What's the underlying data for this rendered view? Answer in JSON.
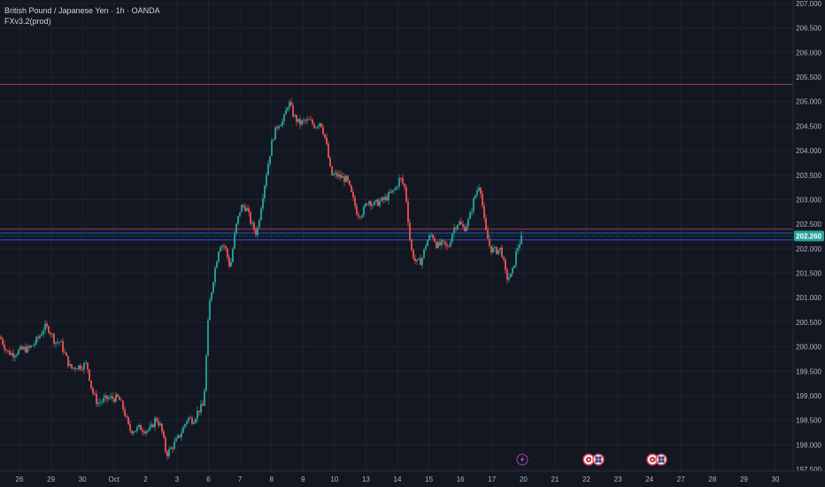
{
  "header": {
    "symbol_title": "British Pound / Japanese Yen · 1h · OANDA",
    "indicator": "FXv3.2(prod)"
  },
  "colors": {
    "background": "#131722",
    "up": "#26a69a",
    "down": "#ef5350",
    "grid": "#1e222d",
    "axis_text": "#b2b5be",
    "current_price_bg": "#26a69a",
    "resistance_line": "#b2455a",
    "support_line": "#2962ff"
  },
  "chart_data": {
    "type": "candlestick",
    "y_ticks": [
      "207.000",
      "206.500",
      "206.000",
      "205.500",
      "205.000",
      "204.500",
      "204.000",
      "203.500",
      "203.000",
      "202.500",
      "202.000",
      "201.500",
      "201.000",
      "200.500",
      "200.000",
      "199.500",
      "199.000",
      "198.500",
      "198.000",
      "197.500"
    ],
    "ylim": [
      197.5,
      207.0
    ],
    "x_ticks": [
      "26",
      "29",
      "30",
      "Oct",
      "2",
      "3",
      "6",
      "7",
      "8",
      "9",
      "10",
      "13",
      "14",
      "15",
      "16",
      "17",
      "20",
      "21",
      "22",
      "23",
      "24",
      "27",
      "28",
      "29",
      "30"
    ],
    "current_price": "202.260",
    "horizontal_lines": [
      {
        "price": 205.35,
        "kind": "resistance"
      },
      {
        "price": 202.4,
        "kind": "resistance"
      },
      {
        "price": 202.32,
        "kind": "support"
      },
      {
        "price": 202.18,
        "kind": "support"
      }
    ],
    "path_points": [
      [
        0,
        200.2
      ],
      [
        8,
        199.9
      ],
      [
        14,
        199.85
      ],
      [
        20,
        199.9
      ],
      [
        26,
        199.95
      ],
      [
        32,
        199.95
      ],
      [
        38,
        200.05
      ],
      [
        44,
        200.2
      ],
      [
        50,
        200.4
      ],
      [
        56,
        200.35
      ],
      [
        62,
        200.1
      ],
      [
        68,
        200.1
      ],
      [
        74,
        199.8
      ],
      [
        80,
        199.55
      ],
      [
        86,
        199.6
      ],
      [
        92,
        199.6
      ],
      [
        98,
        199.65
      ],
      [
        104,
        199.1
      ],
      [
        110,
        198.85
      ],
      [
        116,
        198.9
      ],
      [
        122,
        198.95
      ],
      [
        128,
        198.95
      ],
      [
        134,
        198.95
      ],
      [
        140,
        198.7
      ],
      [
        146,
        198.3
      ],
      [
        152,
        198.3
      ],
      [
        158,
        198.35
      ],
      [
        164,
        198.3
      ],
      [
        170,
        198.3
      ],
      [
        176,
        198.55
      ],
      [
        182,
        198.35
      ],
      [
        188,
        197.8
      ],
      [
        194,
        197.95
      ],
      [
        200,
        198.1
      ],
      [
        206,
        198.3
      ],
      [
        212,
        198.55
      ],
      [
        218,
        198.5
      ],
      [
        224,
        198.7
      ],
      [
        230,
        198.8
      ],
      [
        236,
        200.8
      ],
      [
        242,
        201.5
      ],
      [
        248,
        202.1
      ],
      [
        254,
        202.05
      ],
      [
        260,
        201.6
      ],
      [
        266,
        202.4
      ],
      [
        272,
        202.85
      ],
      [
        278,
        202.85
      ],
      [
        284,
        202.5
      ],
      [
        290,
        202.3
      ],
      [
        296,
        203.0
      ],
      [
        302,
        203.65
      ],
      [
        308,
        204.25
      ],
      [
        314,
        204.55
      ],
      [
        320,
        204.6
      ],
      [
        326,
        205.0
      ],
      [
        332,
        204.7
      ],
      [
        338,
        204.55
      ],
      [
        344,
        204.6
      ],
      [
        350,
        204.6
      ],
      [
        356,
        204.5
      ],
      [
        362,
        204.6
      ],
      [
        368,
        204.2
      ],
      [
        374,
        203.5
      ],
      [
        380,
        203.5
      ],
      [
        386,
        203.45
      ],
      [
        392,
        203.4
      ],
      [
        398,
        203.05
      ],
      [
        404,
        202.7
      ],
      [
        410,
        202.75
      ],
      [
        416,
        203.0
      ],
      [
        422,
        202.9
      ],
      [
        428,
        202.95
      ],
      [
        434,
        203.0
      ],
      [
        440,
        203.1
      ],
      [
        446,
        203.2
      ],
      [
        452,
        203.45
      ],
      [
        458,
        203.2
      ],
      [
        464,
        202.0
      ],
      [
        470,
        201.7
      ],
      [
        476,
        201.75
      ],
      [
        482,
        202.15
      ],
      [
        488,
        202.3
      ],
      [
        494,
        202.05
      ],
      [
        500,
        202.1
      ],
      [
        506,
        202.0
      ],
      [
        512,
        202.4
      ],
      [
        518,
        202.55
      ],
      [
        524,
        202.4
      ],
      [
        530,
        202.6
      ],
      [
        536,
        203.05
      ],
      [
        542,
        203.35
      ],
      [
        548,
        202.4
      ],
      [
        554,
        202.0
      ],
      [
        560,
        201.95
      ],
      [
        566,
        202.0
      ],
      [
        572,
        201.4
      ],
      [
        578,
        201.45
      ],
      [
        584,
        202.0
      ],
      [
        590,
        202.25
      ]
    ]
  }
}
